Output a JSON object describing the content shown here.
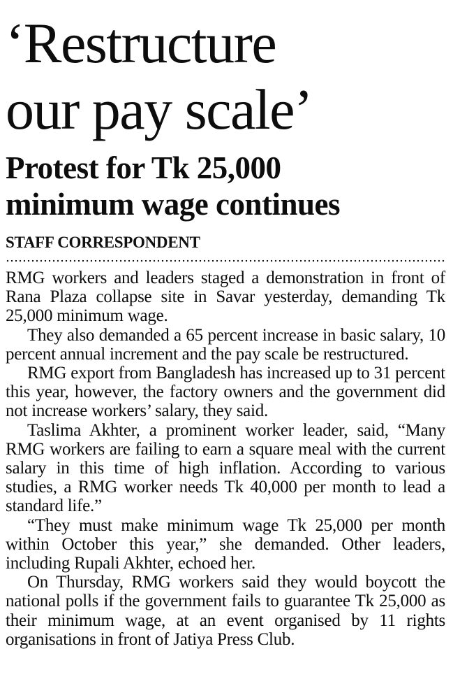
{
  "page": {
    "background_color": "#ffffff",
    "text_color": "#0d0d0d"
  },
  "article": {
    "headline": {
      "text": "‘Restructure our pay scale’",
      "lines": [
        "‘Restructure",
        "our pay scale’"
      ]
    },
    "subheadline": {
      "text": "Protest for Tk 25,000 minimum wage continues",
      "lines": [
        "Protest for Tk 25,000",
        "minimum wage continues"
      ]
    },
    "byline": "STAFF CORRESPONDENT",
    "paragraphs": [
      "RMG workers and leaders staged a demonstration in front of Rana Plaza collapse site in Savar yesterday, demanding Tk 25,000 minimum wage.",
      "They also demanded a 65 percent increase in basic salary, 10 percent annual increment and the pay scale be restructured.",
      "RMG export from Bangladesh has increased up to 31 percent this year, however, the factory owners and the government did not increase workers’ salary, they said.",
      "Taslima Akhter, a prominent worker leader, said, “Many RMG workers are failing to earn a square meal with the current salary in this time of high inflation. According to various studies, a RMG worker needs Tk 40,000 per month to lead a standard life.”",
      "“They must make minimum wage Tk 25,000 per month within October this year,” she demanded. Other leaders, including Rupali Akhter, echoed her.",
      "On Thursday, RMG workers said they would boycott the national polls if the government fails to guarantee Tk 25,000 as their minimum wage, at an event organised by 11 rights organisations in front of Jatiya Press Club."
    ]
  }
}
